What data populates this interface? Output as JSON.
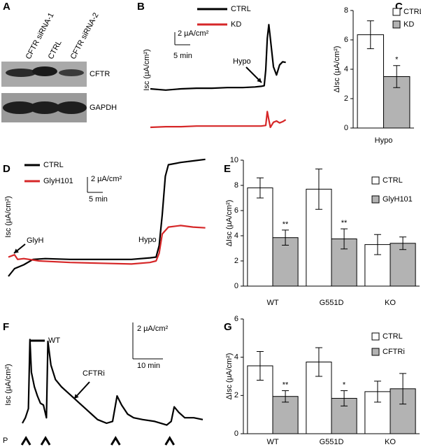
{
  "blot": {
    "panel": "A",
    "lanes": [
      "CFTR siRNA-1",
      "CTRL",
      "CFTR siRNA-2"
    ],
    "rows": [
      "CFTR",
      "GAPDH"
    ]
  },
  "chart_data": [
    {
      "panel": "B",
      "type": "line",
      "y_label": "Isc (µA/cm²)",
      "series": [
        {
          "name": "CTRL",
          "color": "#000000",
          "x": [
            0,
            5,
            10,
            15,
            20,
            25,
            30,
            34,
            36,
            37,
            37.5,
            38,
            38.5,
            39,
            40,
            41,
            42,
            43,
            44
          ],
          "values": [
            0,
            -0.2,
            0,
            0.1,
            0.1,
            0.2,
            0.2,
            0.3,
            0.4,
            0.5,
            3,
            8,
            10.2,
            8,
            3.5,
            2.2,
            3.8,
            4.3,
            4.2
          ]
        },
        {
          "name": "KD",
          "color": "#d62728",
          "x": [
            0,
            5,
            10,
            15,
            20,
            25,
            30,
            36,
            37.5,
            38,
            38.5,
            39,
            40,
            41,
            42,
            43,
            44
          ],
          "values": [
            0,
            0.1,
            0.1,
            0.2,
            0.2,
            0.2,
            0.2,
            0.2,
            0.3,
            2.5,
            1.2,
            0,
            0.8,
            1,
            0.7,
            0.9,
            1.2
          ]
        }
      ],
      "annotations": [
        "Hypo"
      ],
      "scale_bar": {
        "y": {
          "value": 2,
          "label": "2 µA/cm²"
        },
        "x": {
          "value": 5,
          "label": "5 min"
        }
      }
    },
    {
      "panel": "C",
      "type": "bar",
      "y_label": "ΔIsc (µA/cm²)",
      "categories": [
        "Hypo"
      ],
      "series": [
        {
          "name": "CTRL",
          "color": "#ffffff",
          "values": [
            6.35
          ],
          "errors": [
            0.95
          ]
        },
        {
          "name": "KD",
          "color": "#b3b3b3",
          "values": [
            3.5
          ],
          "errors": [
            0.75
          ],
          "significance": [
            "*"
          ]
        }
      ],
      "ylim": [
        0,
        8
      ],
      "yticks": [
        0,
        2,
        4,
        6,
        8
      ]
    },
    {
      "panel": "D",
      "type": "line",
      "y_label": "Isc (µA/cm²)",
      "series": [
        {
          "name": "CTRL",
          "color": "#000000",
          "x": [
            0,
            2,
            5,
            8,
            12,
            20,
            30,
            40,
            46,
            48,
            49,
            50,
            51,
            52,
            56,
            60,
            64
          ],
          "values": [
            0,
            1,
            1.5,
            2.2,
            2.3,
            2.2,
            2.2,
            2.2,
            2.4,
            2.5,
            4,
            8,
            13,
            14.5,
            14.8,
            15,
            15.2
          ]
        },
        {
          "name": "GlyH101",
          "color": "#d62728",
          "x": [
            0,
            2,
            3,
            5,
            10,
            20,
            30,
            40,
            46,
            48,
            49,
            50,
            52,
            56,
            60,
            64
          ],
          "values": [
            2.5,
            2.8,
            2.2,
            2.3,
            2,
            1.8,
            1.7,
            1.6,
            1.8,
            2,
            3,
            5.5,
            6.4,
            6.6,
            6.4,
            6.3
          ]
        }
      ],
      "annotations": [
        "GlyH",
        "Hypo"
      ],
      "scale_bar": {
        "y": {
          "value": 2,
          "label": "2 µA/cm²"
        },
        "x": {
          "value": 5,
          "label": "5 min"
        }
      }
    },
    {
      "panel": "E",
      "type": "bar",
      "y_label": "ΔIsc (µA/cm²)",
      "categories": [
        "WT",
        "G551D",
        "KO"
      ],
      "series": [
        {
          "name": "CTRL",
          "color": "#ffffff",
          "values": [
            7.8,
            7.7,
            3.3
          ],
          "errors": [
            0.8,
            1.6,
            0.8
          ]
        },
        {
          "name": "GlyH101",
          "color": "#b3b3b3",
          "values": [
            3.85,
            3.75,
            3.4
          ],
          "errors": [
            0.6,
            0.8,
            0.5
          ],
          "significance": [
            "**",
            "**",
            null
          ]
        }
      ],
      "ylim": [
        0,
        10
      ],
      "yticks": [
        0,
        2,
        4,
        6,
        8,
        10
      ]
    },
    {
      "panel": "F",
      "type": "line",
      "y_label": "Isc (µA/cm²)",
      "series": [
        {
          "name": "WT",
          "color": "#000000",
          "x": [
            0,
            1,
            2,
            2.5,
            3,
            4,
            5,
            6,
            7,
            8,
            8.5,
            9.5,
            11,
            13,
            15,
            17,
            19,
            21,
            23,
            25,
            28,
            30,
            31.5,
            33,
            35,
            37,
            40,
            44,
            48,
            49.5,
            50.5,
            52,
            54,
            57,
            60
          ],
          "values": [
            0,
            0.3,
            0.8,
            4.6,
            2.8,
            2,
            1.5,
            1.1,
            1,
            0.3,
            4.5,
            3.2,
            2.4,
            2,
            1.7,
            1.4,
            1.1,
            0.8,
            0.5,
            0.2,
            0,
            0.1,
            1.5,
            1,
            0.5,
            0.3,
            0.2,
            0.1,
            -0.1,
            0.1,
            0.9,
            0.6,
            0.3,
            0.3,
            0.2
          ]
        }
      ],
      "markers_x": [
        1.2,
        7.7,
        31,
        49
      ],
      "annotations": [
        "CFTRi",
        "P"
      ],
      "scale_bar": {
        "y": {
          "value": 2,
          "label": "2 µA/cm²"
        },
        "x": {
          "value": 10,
          "label": "10 min"
        }
      }
    },
    {
      "panel": "G",
      "type": "bar",
      "y_label": "ΔIsc (µA/cm²)",
      "categories": [
        "WT",
        "G551D",
        "KO"
      ],
      "series": [
        {
          "name": "CTRL",
          "color": "#ffffff",
          "values": [
            3.55,
            3.75,
            2.2
          ],
          "errors": [
            0.75,
            0.75,
            0.55
          ]
        },
        {
          "name": "CFTRi",
          "color": "#b3b3b3",
          "values": [
            1.95,
            1.85,
            2.35
          ],
          "errors": [
            0.3,
            0.4,
            0.8
          ],
          "significance": [
            "**",
            "*",
            null
          ]
        }
      ],
      "ylim": [
        0,
        6
      ],
      "yticks": [
        0,
        2,
        4,
        6
      ]
    }
  ]
}
